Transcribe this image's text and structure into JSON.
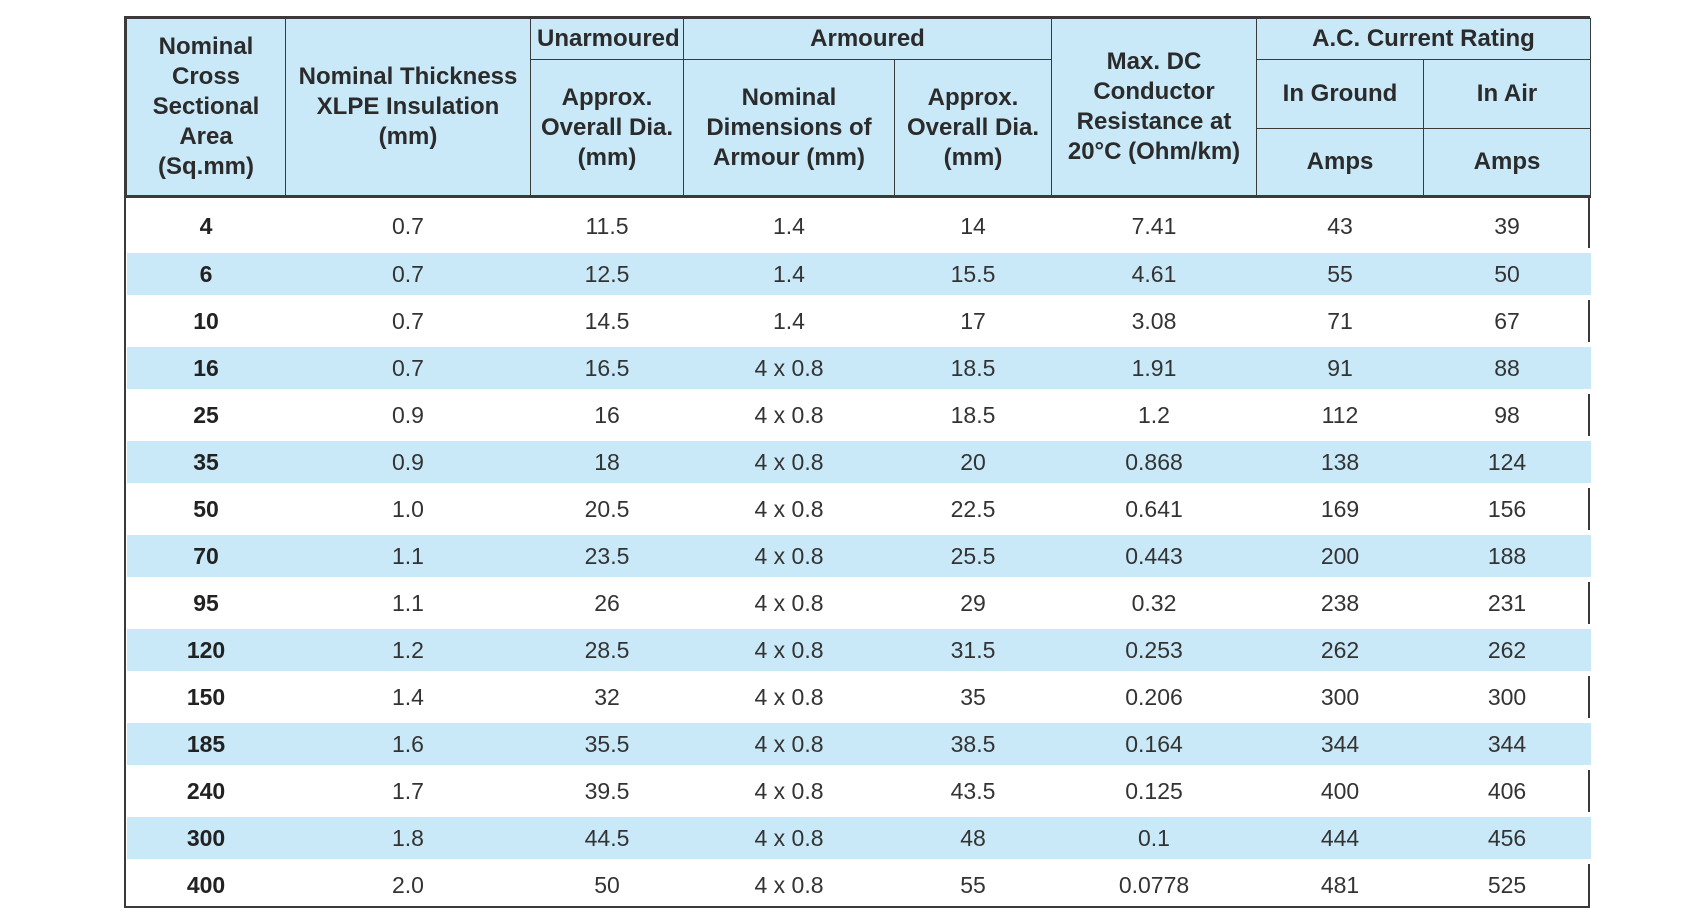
{
  "headers": {
    "nominal_area": "Nominal Cross Sectional Area (Sq.mm)",
    "nominal_thickness": "Nominal Thickness XLPE Insulation (mm)",
    "unarmoured": "Unarmoured",
    "unarmoured_dia": "Approx. Overall Dia. (mm)",
    "armoured": "Armoured",
    "armour_dims": "Nominal Dimensions of Armour (mm)",
    "armoured_dia": "Approx. Overall Dia. (mm)",
    "max_dc": "Max. DC Conductor Resistance at 20°C (Ohm/km)",
    "ac_rating": "A.C. Current Rating",
    "in_ground": "In Ground",
    "in_air": "In Air",
    "amps_ground": "Amps",
    "amps_air": "Amps"
  },
  "rows": [
    [
      "4",
      "0.7",
      "11.5",
      "1.4",
      "14",
      "7.41",
      "43",
      "39"
    ],
    [
      "6",
      "0.7",
      "12.5",
      "1.4",
      "15.5",
      "4.61",
      "55",
      "50"
    ],
    [
      "10",
      "0.7",
      "14.5",
      "1.4",
      "17",
      "3.08",
      "71",
      "67"
    ],
    [
      "16",
      "0.7",
      "16.5",
      "4 x 0.8",
      "18.5",
      "1.91",
      "91",
      "88"
    ],
    [
      "25",
      "0.9",
      "16",
      "4 x 0.8",
      "18.5",
      "1.2",
      "112",
      "98"
    ],
    [
      "35",
      "0.9",
      "18",
      "4 x 0.8",
      "20",
      "0.868",
      "138",
      "124"
    ],
    [
      "50",
      "1.0",
      "20.5",
      "4 x 0.8",
      "22.5",
      "0.641",
      "169",
      "156"
    ],
    [
      "70",
      "1.1",
      "23.5",
      "4 x 0.8",
      "25.5",
      "0.443",
      "200",
      "188"
    ],
    [
      "95",
      "1.1",
      "26",
      "4 x 0.8",
      "29",
      "0.32",
      "238",
      "231"
    ],
    [
      "120",
      "1.2",
      "28.5",
      "4 x 0.8",
      "31.5",
      "0.253",
      "262",
      "262"
    ],
    [
      "150",
      "1.4",
      "32",
      "4 x 0.8",
      "35",
      "0.206",
      "300",
      "300"
    ],
    [
      "185",
      "1.6",
      "35.5",
      "4 x 0.8",
      "38.5",
      "0.164",
      "344",
      "344"
    ],
    [
      "240",
      "1.7",
      "39.5",
      "4 x 0.8",
      "43.5",
      "0.125",
      "400",
      "406"
    ],
    [
      "300",
      "1.8",
      "44.5",
      "4 x 0.8",
      "48",
      "0.1",
      "444",
      "456"
    ],
    [
      "400",
      "2.0",
      "50",
      "4 x 0.8",
      "55",
      "0.0778",
      "481",
      "525"
    ]
  ]
}
